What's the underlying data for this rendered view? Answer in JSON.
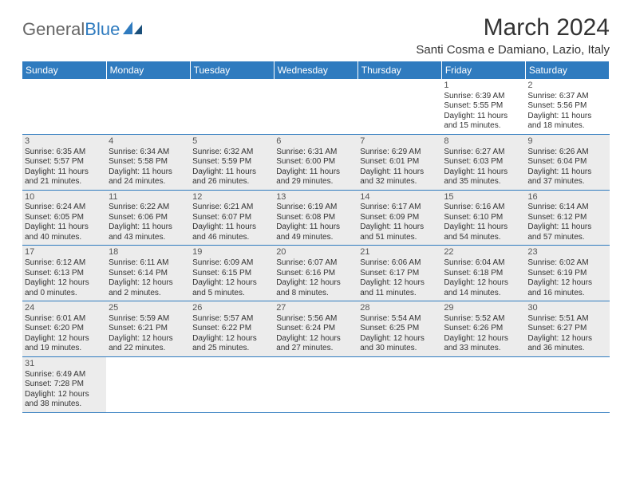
{
  "brand": {
    "general": "General",
    "blue": "Blue"
  },
  "title": "March 2024",
  "location": "Santi Cosma e Damiano, Lazio, Italy",
  "colors": {
    "header_bg": "#2f7bbf",
    "header_text": "#ffffff",
    "row_border": "#2f7bbf",
    "shaded_bg": "#ececec",
    "text": "#333333",
    "logo_general": "#666666",
    "logo_blue": "#2f7bbf"
  },
  "dayHeaders": [
    "Sunday",
    "Monday",
    "Tuesday",
    "Wednesday",
    "Thursday",
    "Friday",
    "Saturday"
  ],
  "weeks": [
    [
      null,
      null,
      null,
      null,
      null,
      {
        "n": "1",
        "sr": "6:39 AM",
        "ss": "5:55 PM",
        "dl": "11 hours and 15 minutes."
      },
      {
        "n": "2",
        "sr": "6:37 AM",
        "ss": "5:56 PM",
        "dl": "11 hours and 18 minutes."
      }
    ],
    [
      {
        "n": "3",
        "sr": "6:35 AM",
        "ss": "5:57 PM",
        "dl": "11 hours and 21 minutes.",
        "sh": true
      },
      {
        "n": "4",
        "sr": "6:34 AM",
        "ss": "5:58 PM",
        "dl": "11 hours and 24 minutes.",
        "sh": true
      },
      {
        "n": "5",
        "sr": "6:32 AM",
        "ss": "5:59 PM",
        "dl": "11 hours and 26 minutes.",
        "sh": true
      },
      {
        "n": "6",
        "sr": "6:31 AM",
        "ss": "6:00 PM",
        "dl": "11 hours and 29 minutes.",
        "sh": true
      },
      {
        "n": "7",
        "sr": "6:29 AM",
        "ss": "6:01 PM",
        "dl": "11 hours and 32 minutes.",
        "sh": true
      },
      {
        "n": "8",
        "sr": "6:27 AM",
        "ss": "6:03 PM",
        "dl": "11 hours and 35 minutes.",
        "sh": true
      },
      {
        "n": "9",
        "sr": "6:26 AM",
        "ss": "6:04 PM",
        "dl": "11 hours and 37 minutes.",
        "sh": true
      }
    ],
    [
      {
        "n": "10",
        "sr": "6:24 AM",
        "ss": "6:05 PM",
        "dl": "11 hours and 40 minutes.",
        "sh": true
      },
      {
        "n": "11",
        "sr": "6:22 AM",
        "ss": "6:06 PM",
        "dl": "11 hours and 43 minutes.",
        "sh": true
      },
      {
        "n": "12",
        "sr": "6:21 AM",
        "ss": "6:07 PM",
        "dl": "11 hours and 46 minutes.",
        "sh": true
      },
      {
        "n": "13",
        "sr": "6:19 AM",
        "ss": "6:08 PM",
        "dl": "11 hours and 49 minutes.",
        "sh": true
      },
      {
        "n": "14",
        "sr": "6:17 AM",
        "ss": "6:09 PM",
        "dl": "11 hours and 51 minutes.",
        "sh": true
      },
      {
        "n": "15",
        "sr": "6:16 AM",
        "ss": "6:10 PM",
        "dl": "11 hours and 54 minutes.",
        "sh": true
      },
      {
        "n": "16",
        "sr": "6:14 AM",
        "ss": "6:12 PM",
        "dl": "11 hours and 57 minutes.",
        "sh": true
      }
    ],
    [
      {
        "n": "17",
        "sr": "6:12 AM",
        "ss": "6:13 PM",
        "dl": "12 hours and 0 minutes.",
        "sh": true
      },
      {
        "n": "18",
        "sr": "6:11 AM",
        "ss": "6:14 PM",
        "dl": "12 hours and 2 minutes.",
        "sh": true
      },
      {
        "n": "19",
        "sr": "6:09 AM",
        "ss": "6:15 PM",
        "dl": "12 hours and 5 minutes.",
        "sh": true
      },
      {
        "n": "20",
        "sr": "6:07 AM",
        "ss": "6:16 PM",
        "dl": "12 hours and 8 minutes.",
        "sh": true
      },
      {
        "n": "21",
        "sr": "6:06 AM",
        "ss": "6:17 PM",
        "dl": "12 hours and 11 minutes.",
        "sh": true
      },
      {
        "n": "22",
        "sr": "6:04 AM",
        "ss": "6:18 PM",
        "dl": "12 hours and 14 minutes.",
        "sh": true
      },
      {
        "n": "23",
        "sr": "6:02 AM",
        "ss": "6:19 PM",
        "dl": "12 hours and 16 minutes.",
        "sh": true
      }
    ],
    [
      {
        "n": "24",
        "sr": "6:01 AM",
        "ss": "6:20 PM",
        "dl": "12 hours and 19 minutes.",
        "sh": true
      },
      {
        "n": "25",
        "sr": "5:59 AM",
        "ss": "6:21 PM",
        "dl": "12 hours and 22 minutes.",
        "sh": true
      },
      {
        "n": "26",
        "sr": "5:57 AM",
        "ss": "6:22 PM",
        "dl": "12 hours and 25 minutes.",
        "sh": true
      },
      {
        "n": "27",
        "sr": "5:56 AM",
        "ss": "6:24 PM",
        "dl": "12 hours and 27 minutes.",
        "sh": true
      },
      {
        "n": "28",
        "sr": "5:54 AM",
        "ss": "6:25 PM",
        "dl": "12 hours and 30 minutes.",
        "sh": true
      },
      {
        "n": "29",
        "sr": "5:52 AM",
        "ss": "6:26 PM",
        "dl": "12 hours and 33 minutes.",
        "sh": true
      },
      {
        "n": "30",
        "sr": "5:51 AM",
        "ss": "6:27 PM",
        "dl": "12 hours and 36 minutes.",
        "sh": true
      }
    ],
    [
      {
        "n": "31",
        "sr": "6:49 AM",
        "ss": "7:28 PM",
        "dl": "12 hours and 38 minutes.",
        "sh": true
      },
      null,
      null,
      null,
      null,
      null,
      null
    ]
  ],
  "labels": {
    "sunrise": "Sunrise:",
    "sunset": "Sunset:",
    "daylight": "Daylight:"
  }
}
